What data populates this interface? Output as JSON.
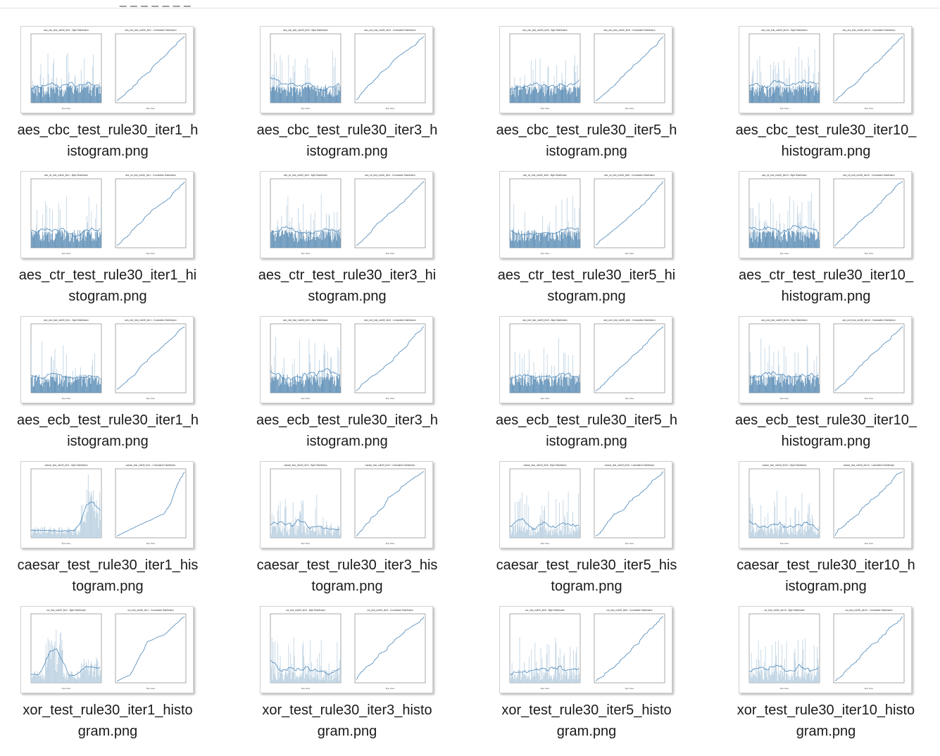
{
  "header": {
    "path_fragment": "_        _    _  _    _  _               _"
  },
  "files": [
    {
      "line1": "aes_cbc_test_rule30_iter1_h",
      "line2": "istogram.png",
      "title_left": "aes_cbc_test_rule30_iter1 - Byte Distribution",
      "title_right": "aes_cbc_test_rule30_iter1 - Cumulative Distribution",
      "pattern": "dense"
    },
    {
      "line1": "aes_cbc_test_rule30_iter3_h",
      "line2": "istogram.png",
      "title_left": "aes_cbc_test_rule30_iter3 - Byte Distribution",
      "title_right": "aes_cbc_test_rule30_iter3 - Cumulative Distribution",
      "pattern": "dense"
    },
    {
      "line1": "aes_cbc_test_rule30_iter5_h",
      "line2": "istogram.png",
      "title_left": "aes_cbc_test_rule30_iter5 - Byte Distribution",
      "title_right": "aes_cbc_test_rule30_iter5 - Cumulative Distribution",
      "pattern": "dense"
    },
    {
      "line1": "aes_cbc_test_rule30_iter10_",
      "line2": "histogram.png",
      "title_left": "aes_cbc_test_rule30_iter10 - Byte Distribution",
      "title_right": "aes_cbc_test_rule30_iter10 - Cumulative Distribution",
      "pattern": "dense"
    },
    {
      "line1": "aes_ctr_test_rule30_iter1_hi",
      "line2": "stogram.png",
      "title_left": "aes_ctr_test_rule30_iter1 - Byte Distribution",
      "title_right": "aes_ctr_test_rule30_iter1 - Cumulative Distribution",
      "pattern": "dense"
    },
    {
      "line1": "aes_ctr_test_rule30_iter3_hi",
      "line2": "stogram.png",
      "title_left": "aes_ctr_test_rule30_iter3 - Byte Distribution",
      "title_right": "aes_ctr_test_rule30_iter3 - Cumulative Distribution",
      "pattern": "dense"
    },
    {
      "line1": "aes_ctr_test_rule30_iter5_hi",
      "line2": "stogram.png",
      "title_left": "aes_ctr_test_rule30_iter5 - Byte Distribution",
      "title_right": "aes_ctr_test_rule30_iter5 - Cumulative Distribution",
      "pattern": "dense"
    },
    {
      "line1": "aes_ctr_test_rule30_iter10_",
      "line2": "histogram.png",
      "title_left": "aes_ctr_test_rule30_iter10 - Byte Distribution",
      "title_right": "aes_ctr_test_rule30_iter10 - Cumulative Distribution",
      "pattern": "dense"
    },
    {
      "line1": "aes_ecb_test_rule30_iter1_h",
      "line2": "istogram.png",
      "title_left": "aes_ecb_test_rule30_iter1 - Byte Distribution",
      "title_right": "aes_ecb_test_rule30_iter1 - Cumulative Distribution",
      "pattern": "dense"
    },
    {
      "line1": "aes_ecb_test_rule30_iter3_h",
      "line2": "istogram.png",
      "title_left": "aes_ecb_test_rule30_iter3 - Byte Distribution",
      "title_right": "aes_ecb_test_rule30_iter3 - Cumulative Distribution",
      "pattern": "dense"
    },
    {
      "line1": "aes_ecb_test_rule30_iter5_h",
      "line2": "istogram.png",
      "title_left": "aes_ecb_test_rule30_iter5 - Byte Distribution",
      "title_right": "aes_ecb_test_rule30_iter5 - Cumulative Distribution",
      "pattern": "dense"
    },
    {
      "line1": "aes_ecb_test_rule30_iter10_",
      "line2": "histogram.png",
      "title_left": "aes_ecb_test_rule30_iter10 - Byte Distribution",
      "title_right": "aes_ecb_test_rule30_iter10 - Cumulative Distribution",
      "pattern": "dense"
    },
    {
      "line1": "caesar_test_rule30_iter1_his",
      "line2": "togram.png",
      "title_left": "caesar_test_rule30_iter1 - Byte Distribution",
      "title_right": "caesar_test_rule30_iter1 - Cumulative Distribution",
      "pattern": "skew_right"
    },
    {
      "line1": "caesar_test_rule30_iter3_his",
      "line2": "togram.png",
      "title_left": "caesar_test_rule30_iter3 - Byte Distribution",
      "title_right": "caesar_test_rule30_iter3 - Cumulative Distribution",
      "pattern": "sparse"
    },
    {
      "line1": "caesar_test_rule30_iter5_his",
      "line2": "togram.png",
      "title_left": "caesar_test_rule30_iter5 - Byte Distribution",
      "title_right": "caesar_test_rule30_iter5 - Cumulative Distribution",
      "pattern": "sparse"
    },
    {
      "line1": "caesar_test_rule30_iter10_h",
      "line2": "istogram.png",
      "title_left": "caesar_test_rule30_iter10 - Byte Distribution",
      "title_right": "caesar_test_rule30_iter10 - Cumulative Distribution",
      "pattern": "sparse"
    },
    {
      "line1": "xor_test_rule30_iter1_histo",
      "line2": "gram.png",
      "title_left": "xor_test_rule30_iter1 - Byte Distribution",
      "title_right": "xor_test_rule30_iter1 - Cumulative Distribution",
      "pattern": "peak_left"
    },
    {
      "line1": "xor_test_rule30_iter3_histo",
      "line2": "gram.png",
      "title_left": "xor_test_rule30_iter3 - Byte Distribution",
      "title_right": "xor_test_rule30_iter3 - Cumulative Distribution",
      "pattern": "sparse"
    },
    {
      "line1": "xor_test_rule30_iter5_histo",
      "line2": "gram.png",
      "title_left": "xor_test_rule30_iter5 - Byte Distribution",
      "title_right": "xor_test_rule30_iter5 - Cumulative Distribution",
      "pattern": "sparse"
    },
    {
      "line1": "xor_test_rule30_iter10_histo",
      "line2": "gram.png",
      "title_left": "xor_test_rule30_iter10 - Byte Distribution",
      "title_right": "xor_test_rule30_iter10 - Cumulative Distribution",
      "pattern": "sparse"
    }
  ],
  "colors": {
    "bar": "#5b8db5",
    "bar_light": "#b9cfe0",
    "line": "#4a86b8",
    "axis": "#555555"
  }
}
